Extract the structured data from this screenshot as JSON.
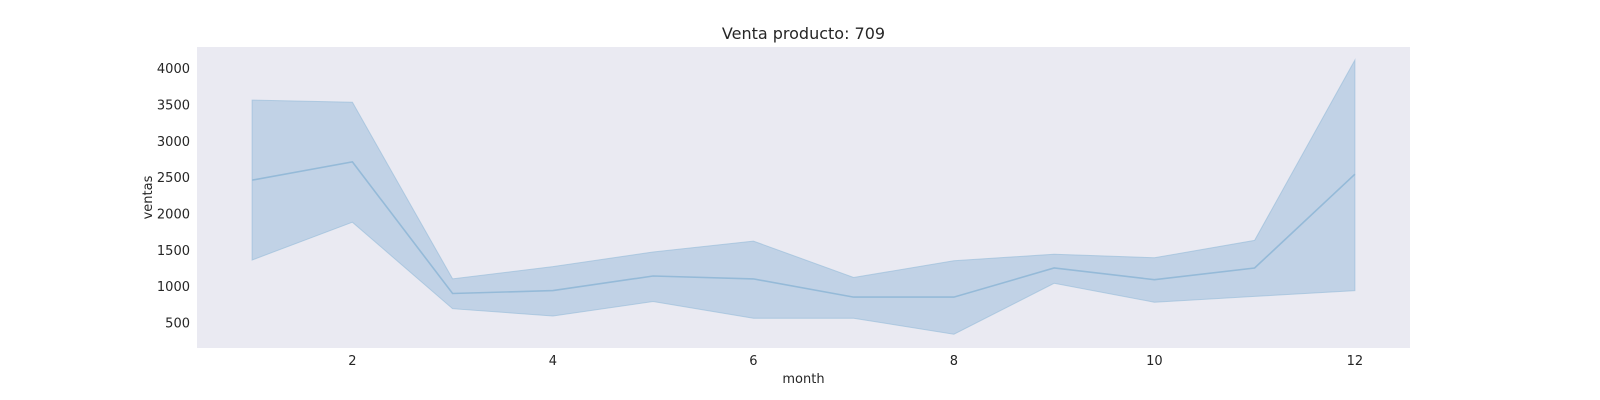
{
  "chart_data": {
    "type": "line",
    "title": "Venta producto: 709",
    "xlabel": "month",
    "ylabel": "ventas",
    "x": [
      1,
      2,
      3,
      4,
      5,
      6,
      7,
      8,
      9,
      10,
      11,
      12
    ],
    "series": [
      {
        "values": [
          2460,
          2710,
          900,
          940,
          1140,
          1100,
          850,
          850,
          1250,
          1090,
          1250,
          2540
        ],
        "ci_upper": [
          3560,
          3530,
          1100,
          1270,
          1470,
          1620,
          1120,
          1350,
          1440,
          1390,
          1630,
          4110
        ],
        "ci_lower": [
          1360,
          1880,
          690,
          590,
          790,
          560,
          560,
          340,
          1040,
          780,
          860,
          940
        ]
      }
    ],
    "xticks": [
      2,
      4,
      6,
      8,
      10,
      12
    ],
    "yticks": [
      500,
      1000,
      1500,
      2000,
      2500,
      3000,
      3500,
      4000
    ],
    "xlim": [
      0.45,
      12.55
    ],
    "ylim": [
      150,
      4290
    ],
    "grid": false,
    "colors": {
      "background": "#eaeaf2",
      "line": "#95bad8",
      "band": "#aac5de"
    }
  }
}
